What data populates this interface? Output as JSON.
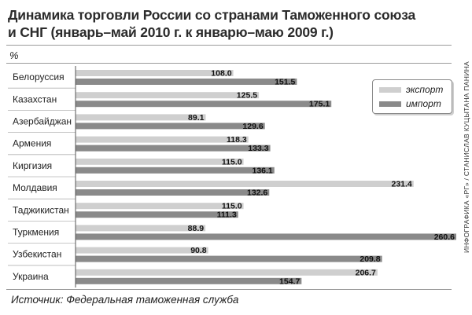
{
  "header": {
    "title_line1": "Динамика торговли России со странами Таможенного союза",
    "title_line2": "и СНГ (январь–май 2010 г. к январю–маю 2009 г.)",
    "unit": "%"
  },
  "footer": {
    "source": "Источник: Федеральная таможенная служба",
    "credit": "ИНФОГРАФИКА «РГ» / СТАНИСЛАВ КУЦЫТАНА ПАНИНА"
  },
  "colors": {
    "export": "#cfcfcf",
    "import": "#8a8a8a",
    "axis": "#555555"
  },
  "chart_data": {
    "type": "bar",
    "orientation": "horizontal",
    "categories": [
      "Белоруссия",
      "Казахстан",
      "Азербайджан",
      "Армения",
      "Киргизия",
      "Молдавия",
      "Таджикистан",
      "Туркмения",
      "Узбекистан",
      "Украина"
    ],
    "series": [
      {
        "name": "экспорт",
        "values": [
          108.0,
          125.5,
          89.1,
          118.3,
          115.0,
          231.4,
          115.0,
          88.9,
          90.8,
          206.7
        ]
      },
      {
        "name": "импорт",
        "values": [
          151.5,
          175.1,
          129.6,
          133.3,
          136.1,
          132.6,
          111.3,
          260.6,
          209.8,
          154.7
        ]
      }
    ],
    "title": "Динамика торговли России со странами Таможенного союза и СНГ (январь–май 2010 г. к январю–маю 2009 г.)",
    "ylabel": "%",
    "xlim": [
      0,
      260.6
    ],
    "legend_position": "top-right",
    "grid": false
  }
}
